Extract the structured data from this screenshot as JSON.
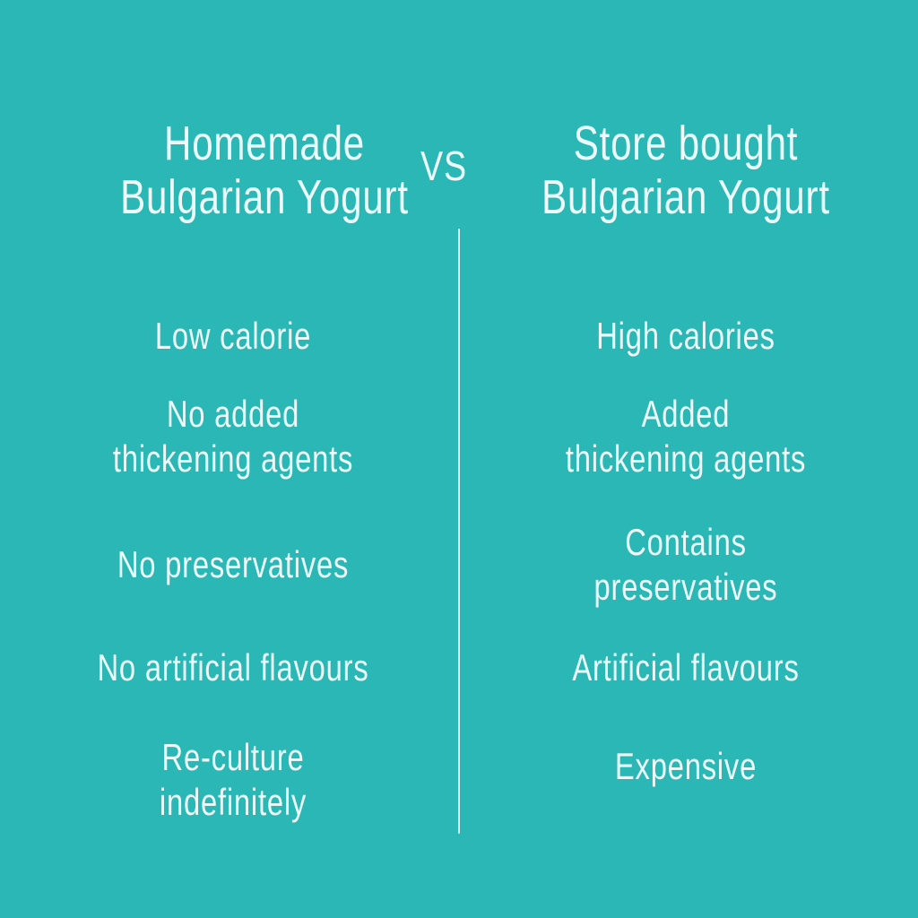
{
  "colors": {
    "background": "#2ab7b5",
    "text": "#ecfbfa",
    "divider": "rgba(240,255,255,0.9)"
  },
  "header": {
    "left_title": "Homemade\nBulgarian Yogurt",
    "vs_label": "VS",
    "right_title": "Store bought\nBulgarian Yogurt"
  },
  "comparison": {
    "rows": [
      {
        "left": "Low calorie",
        "right": "High calories"
      },
      {
        "left": "No added\nthickening agents",
        "right": "Added\nthickening agents"
      },
      {
        "left": "No preservatives",
        "right": "Contains\npreservatives"
      },
      {
        "left": "No artificial flavours",
        "right": "Artificial flavours"
      },
      {
        "left": "Re-culture\nindefinitely",
        "right": "Expensive"
      }
    ]
  }
}
